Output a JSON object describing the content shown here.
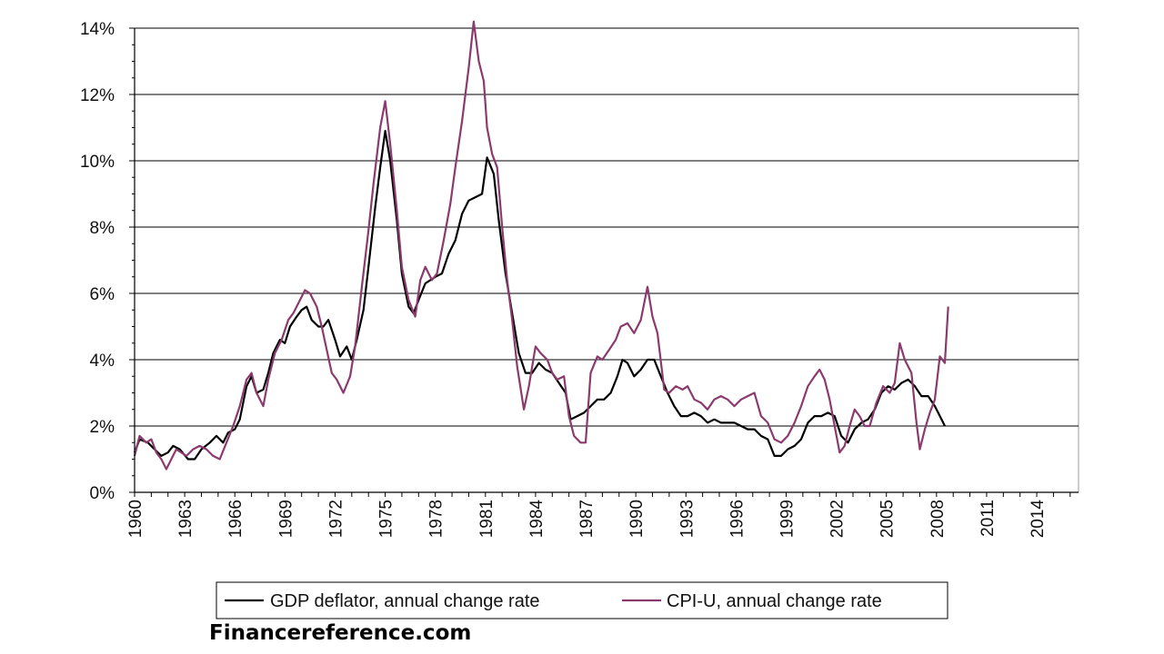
{
  "watermark": "Financereference.com",
  "chart_data": {
    "type": "line",
    "title": "",
    "xlabel": "",
    "ylabel": "",
    "xlim": [
      1960,
      2016.5
    ],
    "ylim": [
      0,
      14
    ],
    "y_ticks": [
      "0%",
      "2%",
      "4%",
      "6%",
      "8%",
      "10%",
      "12%",
      "14%"
    ],
    "x_ticks": [
      "1960",
      "1963",
      "1966",
      "1969",
      "1972",
      "1975",
      "1978",
      "1981",
      "1984",
      "1987",
      "1990",
      "1993",
      "1996",
      "1999",
      "2002",
      "2005",
      "2008",
      "2011",
      "2014"
    ],
    "grid": "horizontal",
    "legend_position": "bottom",
    "series": [
      {
        "name": "GDP deflator, annual change rate",
        "color": "#000000",
        "points": [
          [
            1960.0,
            1.2
          ],
          [
            1960.3,
            1.6
          ],
          [
            1960.8,
            1.5
          ],
          [
            1961.2,
            1.3
          ],
          [
            1961.6,
            1.1
          ],
          [
            1962.0,
            1.2
          ],
          [
            1962.3,
            1.4
          ],
          [
            1962.7,
            1.3
          ],
          [
            1963.2,
            1.0
          ],
          [
            1963.6,
            1.0
          ],
          [
            1964.0,
            1.3
          ],
          [
            1964.5,
            1.5
          ],
          [
            1964.9,
            1.7
          ],
          [
            1965.3,
            1.5
          ],
          [
            1965.6,
            1.8
          ],
          [
            1966.0,
            1.9
          ],
          [
            1966.3,
            2.2
          ],
          [
            1966.7,
            3.2
          ],
          [
            1967.0,
            3.5
          ],
          [
            1967.3,
            3.0
          ],
          [
            1967.7,
            3.1
          ],
          [
            1968.0,
            3.6
          ],
          [
            1968.3,
            4.2
          ],
          [
            1968.7,
            4.6
          ],
          [
            1969.0,
            4.5
          ],
          [
            1969.3,
            5.0
          ],
          [
            1969.7,
            5.3
          ],
          [
            1970.0,
            5.5
          ],
          [
            1970.3,
            5.6
          ],
          [
            1970.6,
            5.2
          ],
          [
            1971.0,
            5.0
          ],
          [
            1971.3,
            5.0
          ],
          [
            1971.6,
            5.2
          ],
          [
            1972.0,
            4.6
          ],
          [
            1972.3,
            4.1
          ],
          [
            1972.7,
            4.4
          ],
          [
            1973.0,
            4.0
          ],
          [
            1973.3,
            4.6
          ],
          [
            1973.7,
            5.5
          ],
          [
            1974.0,
            6.8
          ],
          [
            1974.4,
            8.6
          ],
          [
            1974.7,
            9.8
          ],
          [
            1975.0,
            10.9
          ],
          [
            1975.3,
            10.0
          ],
          [
            1975.7,
            8.2
          ],
          [
            1976.0,
            6.6
          ],
          [
            1976.4,
            5.6
          ],
          [
            1976.7,
            5.4
          ],
          [
            1977.0,
            5.8
          ],
          [
            1977.4,
            6.3
          ],
          [
            1977.7,
            6.4
          ],
          [
            1978.0,
            6.5
          ],
          [
            1978.4,
            6.6
          ],
          [
            1978.8,
            7.2
          ],
          [
            1979.2,
            7.6
          ],
          [
            1979.6,
            8.4
          ],
          [
            1980.0,
            8.8
          ],
          [
            1980.4,
            8.9
          ],
          [
            1980.8,
            9.0
          ],
          [
            1981.1,
            10.1
          ],
          [
            1981.5,
            9.6
          ],
          [
            1981.8,
            8.2
          ],
          [
            1982.2,
            6.6
          ],
          [
            1982.6,
            5.4
          ],
          [
            1983.0,
            4.2
          ],
          [
            1983.4,
            3.6
          ],
          [
            1983.8,
            3.6
          ],
          [
            1984.2,
            3.9
          ],
          [
            1984.6,
            3.7
          ],
          [
            1985.0,
            3.6
          ],
          [
            1985.4,
            3.3
          ],
          [
            1985.8,
            3.0
          ],
          [
            1986.1,
            2.2
          ],
          [
            1986.5,
            2.3
          ],
          [
            1986.9,
            2.4
          ],
          [
            1987.3,
            2.6
          ],
          [
            1987.7,
            2.8
          ],
          [
            1988.1,
            2.8
          ],
          [
            1988.5,
            3.0
          ],
          [
            1988.9,
            3.5
          ],
          [
            1989.2,
            4.0
          ],
          [
            1989.5,
            3.9
          ],
          [
            1989.9,
            3.5
          ],
          [
            1990.3,
            3.7
          ],
          [
            1990.7,
            4.0
          ],
          [
            1991.1,
            4.0
          ],
          [
            1991.5,
            3.5
          ],
          [
            1991.9,
            3.0
          ],
          [
            1992.3,
            2.6
          ],
          [
            1992.7,
            2.3
          ],
          [
            1993.1,
            2.3
          ],
          [
            1993.5,
            2.4
          ],
          [
            1993.9,
            2.3
          ],
          [
            1994.3,
            2.1
          ],
          [
            1994.7,
            2.2
          ],
          [
            1995.1,
            2.1
          ],
          [
            1995.5,
            2.1
          ],
          [
            1995.9,
            2.1
          ],
          [
            1996.3,
            2.0
          ],
          [
            1996.7,
            1.9
          ],
          [
            1997.1,
            1.9
          ],
          [
            1997.5,
            1.7
          ],
          [
            1997.9,
            1.6
          ],
          [
            1998.3,
            1.1
          ],
          [
            1998.7,
            1.1
          ],
          [
            1999.1,
            1.3
          ],
          [
            1999.5,
            1.4
          ],
          [
            1999.9,
            1.6
          ],
          [
            2000.3,
            2.1
          ],
          [
            2000.7,
            2.3
          ],
          [
            2001.1,
            2.3
          ],
          [
            2001.5,
            2.4
          ],
          [
            2001.9,
            2.3
          ],
          [
            2002.3,
            1.7
          ],
          [
            2002.7,
            1.5
          ],
          [
            2003.1,
            1.9
          ],
          [
            2003.5,
            2.1
          ],
          [
            2003.9,
            2.2
          ],
          [
            2004.3,
            2.5
          ],
          [
            2004.7,
            3.0
          ],
          [
            2005.1,
            3.2
          ],
          [
            2005.5,
            3.1
          ],
          [
            2005.9,
            3.3
          ],
          [
            2006.3,
            3.4
          ],
          [
            2006.7,
            3.2
          ],
          [
            2007.1,
            2.9
          ],
          [
            2007.5,
            2.9
          ],
          [
            2007.9,
            2.6
          ],
          [
            2008.3,
            2.2
          ],
          [
            2008.5,
            2.0
          ]
        ]
      },
      {
        "name": "CPI-U, annual change rate",
        "color": "#8b3a6e",
        "points": [
          [
            1960.0,
            1.1
          ],
          [
            1960.3,
            1.7
          ],
          [
            1960.7,
            1.5
          ],
          [
            1961.0,
            1.6
          ],
          [
            1961.3,
            1.2
          ],
          [
            1961.6,
            1.0
          ],
          [
            1961.9,
            0.7
          ],
          [
            1962.2,
            1.0
          ],
          [
            1962.5,
            1.3
          ],
          [
            1962.8,
            1.2
          ],
          [
            1963.1,
            1.1
          ],
          [
            1963.5,
            1.3
          ],
          [
            1963.9,
            1.4
          ],
          [
            1964.3,
            1.3
          ],
          [
            1964.7,
            1.1
          ],
          [
            1965.1,
            1.0
          ],
          [
            1965.5,
            1.5
          ],
          [
            1965.9,
            2.0
          ],
          [
            1966.3,
            2.6
          ],
          [
            1966.7,
            3.4
          ],
          [
            1967.0,
            3.6
          ],
          [
            1967.3,
            3.0
          ],
          [
            1967.7,
            2.6
          ],
          [
            1968.0,
            3.4
          ],
          [
            1968.4,
            4.2
          ],
          [
            1968.8,
            4.6
          ],
          [
            1969.2,
            5.2
          ],
          [
            1969.5,
            5.4
          ],
          [
            1969.9,
            5.8
          ],
          [
            1970.2,
            6.1
          ],
          [
            1970.5,
            6.0
          ],
          [
            1970.9,
            5.6
          ],
          [
            1971.2,
            5.0
          ],
          [
            1971.5,
            4.3
          ],
          [
            1971.8,
            3.6
          ],
          [
            1972.1,
            3.4
          ],
          [
            1972.5,
            3.0
          ],
          [
            1972.9,
            3.5
          ],
          [
            1973.2,
            4.4
          ],
          [
            1973.6,
            6.2
          ],
          [
            1974.0,
            7.9
          ],
          [
            1974.3,
            9.3
          ],
          [
            1974.7,
            11.0
          ],
          [
            1975.0,
            11.8
          ],
          [
            1975.3,
            10.5
          ],
          [
            1975.7,
            8.5
          ],
          [
            1976.0,
            6.8
          ],
          [
            1976.4,
            5.8
          ],
          [
            1976.8,
            5.3
          ],
          [
            1977.1,
            6.4
          ],
          [
            1977.4,
            6.8
          ],
          [
            1977.8,
            6.4
          ],
          [
            1978.1,
            6.6
          ],
          [
            1978.5,
            7.6
          ],
          [
            1978.9,
            8.7
          ],
          [
            1979.2,
            9.8
          ],
          [
            1979.6,
            11.2
          ],
          [
            1980.0,
            12.8
          ],
          [
            1980.3,
            14.2
          ],
          [
            1980.6,
            13.0
          ],
          [
            1980.9,
            12.4
          ],
          [
            1981.1,
            11.0
          ],
          [
            1981.4,
            10.2
          ],
          [
            1981.7,
            9.8
          ],
          [
            1982.0,
            8.0
          ],
          [
            1982.3,
            6.4
          ],
          [
            1982.6,
            5.2
          ],
          [
            1982.9,
            3.8
          ],
          [
            1983.3,
            2.5
          ],
          [
            1983.6,
            3.2
          ],
          [
            1984.0,
            4.4
          ],
          [
            1984.3,
            4.2
          ],
          [
            1984.7,
            4.0
          ],
          [
            1985.0,
            3.6
          ],
          [
            1985.3,
            3.4
          ],
          [
            1985.7,
            3.5
          ],
          [
            1986.0,
            2.3
          ],
          [
            1986.3,
            1.7
          ],
          [
            1986.7,
            1.5
          ],
          [
            1987.0,
            1.5
          ],
          [
            1987.3,
            3.6
          ],
          [
            1987.7,
            4.1
          ],
          [
            1988.0,
            4.0
          ],
          [
            1988.4,
            4.3
          ],
          [
            1988.8,
            4.6
          ],
          [
            1989.1,
            5.0
          ],
          [
            1989.5,
            5.1
          ],
          [
            1989.9,
            4.8
          ],
          [
            1990.3,
            5.2
          ],
          [
            1990.7,
            6.2
          ],
          [
            1991.0,
            5.3
          ],
          [
            1991.3,
            4.8
          ],
          [
            1991.7,
            3.1
          ],
          [
            1992.0,
            3.0
          ],
          [
            1992.4,
            3.2
          ],
          [
            1992.8,
            3.1
          ],
          [
            1993.1,
            3.2
          ],
          [
            1993.5,
            2.8
          ],
          [
            1993.9,
            2.7
          ],
          [
            1994.3,
            2.5
          ],
          [
            1994.7,
            2.8
          ],
          [
            1995.1,
            2.9
          ],
          [
            1995.5,
            2.8
          ],
          [
            1995.9,
            2.6
          ],
          [
            1996.3,
            2.8
          ],
          [
            1996.7,
            2.9
          ],
          [
            1997.1,
            3.0
          ],
          [
            1997.5,
            2.3
          ],
          [
            1997.9,
            2.1
          ],
          [
            1998.3,
            1.6
          ],
          [
            1998.7,
            1.5
          ],
          [
            1999.1,
            1.7
          ],
          [
            1999.5,
            2.1
          ],
          [
            1999.9,
            2.6
          ],
          [
            2000.3,
            3.2
          ],
          [
            2000.7,
            3.5
          ],
          [
            2001.0,
            3.7
          ],
          [
            2001.3,
            3.4
          ],
          [
            2001.6,
            2.8
          ],
          [
            2001.9,
            2.0
          ],
          [
            2002.2,
            1.2
          ],
          [
            2002.5,
            1.4
          ],
          [
            2002.8,
            2.0
          ],
          [
            2003.1,
            2.5
          ],
          [
            2003.4,
            2.3
          ],
          [
            2003.7,
            2.0
          ],
          [
            2004.0,
            2.0
          ],
          [
            2004.4,
            2.7
          ],
          [
            2004.8,
            3.2
          ],
          [
            2005.2,
            3.0
          ],
          [
            2005.5,
            3.3
          ],
          [
            2005.8,
            4.5
          ],
          [
            2006.1,
            4.0
          ],
          [
            2006.5,
            3.6
          ],
          [
            2006.8,
            2.1
          ],
          [
            2007.0,
            1.3
          ],
          [
            2007.3,
            1.9
          ],
          [
            2007.6,
            2.4
          ],
          [
            2007.9,
            2.8
          ],
          [
            2008.2,
            4.1
          ],
          [
            2008.5,
            3.9
          ],
          [
            2008.7,
            5.6
          ]
        ]
      }
    ]
  }
}
